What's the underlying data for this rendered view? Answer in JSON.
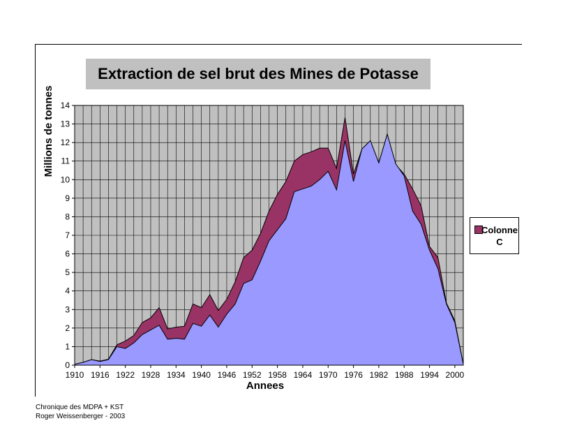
{
  "chart_data": {
    "type": "area",
    "title": "Extraction de sel brut des Mines de Potasse",
    "xlabel": "Annees",
    "ylabel": "Millions de tonnes",
    "ylim": [
      0,
      14
    ],
    "xlim": [
      1910,
      2002
    ],
    "yticks": [
      "0",
      "1",
      "2",
      "3",
      "4",
      "5",
      "6",
      "7",
      "8",
      "9",
      "10",
      "11",
      "12",
      "13",
      "14"
    ],
    "xticks": [
      "1910",
      "1916",
      "1922",
      "1928",
      "1934",
      "1940",
      "1946",
      "1952",
      "1958",
      "1964",
      "1970",
      "1976",
      "1982",
      "1988",
      "1994",
      "2000"
    ],
    "grid": true,
    "legend_position": "right",
    "colors": {
      "upper": "#993366",
      "lower": "#9999ff",
      "plot_bg": "#c0c0c0"
    },
    "x": [
      1910,
      1912,
      1914,
      1916,
      1918,
      1920,
      1922,
      1924,
      1926,
      1928,
      1930,
      1932,
      1934,
      1936,
      1938,
      1940,
      1942,
      1944,
      1946,
      1948,
      1950,
      1952,
      1954,
      1956,
      1958,
      1960,
      1962,
      1964,
      1966,
      1968,
      1970,
      1972,
      1974,
      1976,
      1978,
      1980,
      1982,
      1984,
      1986,
      1988,
      1990,
      1992,
      1994,
      1996,
      1998,
      2000,
      2002
    ],
    "series": [
      {
        "name": "Colonne C",
        "values": [
          0.05,
          0.15,
          0.3,
          0.22,
          0.32,
          1.1,
          1.3,
          1.6,
          2.3,
          2.55,
          3.1,
          1.95,
          2.05,
          2.1,
          3.3,
          3.1,
          3.8,
          2.95,
          3.55,
          4.5,
          5.8,
          6.2,
          7.1,
          8.3,
          9.2,
          9.9,
          11.0,
          11.35,
          11.5,
          11.7,
          11.7,
          10.6,
          13.35,
          10.3,
          11.65,
          12.1,
          10.9,
          12.45,
          10.8,
          10.3,
          9.5,
          8.6,
          6.4,
          5.8,
          3.35,
          2.4,
          0.05
        ]
      },
      {
        "name": "",
        "values": [
          0.05,
          0.15,
          0.3,
          0.2,
          0.3,
          1.0,
          0.9,
          1.2,
          1.65,
          1.9,
          2.15,
          1.4,
          1.45,
          1.4,
          2.25,
          2.1,
          2.7,
          2.05,
          2.75,
          3.3,
          4.4,
          4.6,
          5.6,
          6.7,
          7.3,
          7.9,
          9.35,
          9.5,
          9.65,
          10.0,
          10.45,
          9.45,
          12.1,
          9.9,
          11.65,
          12.1,
          10.9,
          12.45,
          10.85,
          10.2,
          8.3,
          7.6,
          6.2,
          5.2,
          3.3,
          2.3,
          0.05
        ]
      }
    ]
  },
  "legend": {
    "label": "Colonne C"
  },
  "credits": {
    "line1": "Chronique des MDPA + KST",
    "line2": "Roger Weissenberger - 2003"
  }
}
